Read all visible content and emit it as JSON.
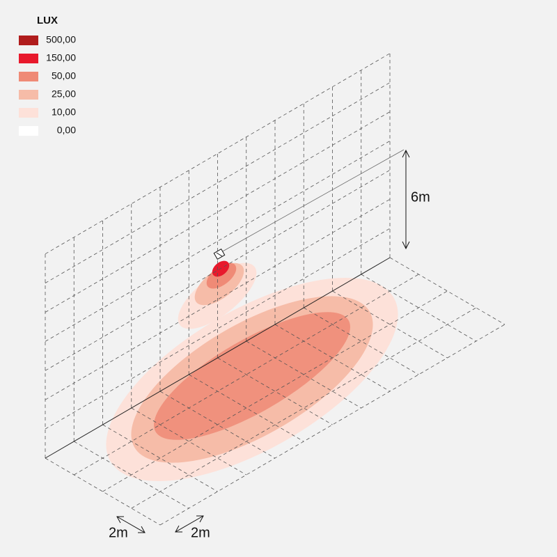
{
  "legend": {
    "title": "LUX",
    "items": [
      {
        "label": "500,00",
        "color": "#b01c1c"
      },
      {
        "label": "150,00",
        "color": "#e8192c"
      },
      {
        "label": "50,00",
        "color": "#ef8a76"
      },
      {
        "label": "25,00",
        "color": "#f6bca8"
      },
      {
        "label": "10,00",
        "color": "#fde1d9"
      },
      {
        "label": "0,00",
        "color": "#ffffff"
      }
    ]
  },
  "dimensions": {
    "height": "6m",
    "width": "2m",
    "depth": "2m"
  }
}
